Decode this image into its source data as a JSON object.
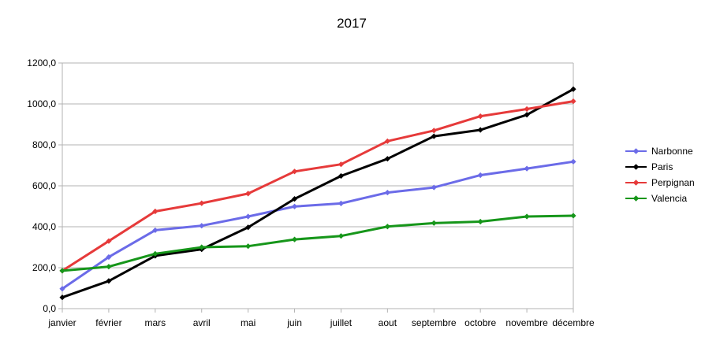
{
  "chart_data": {
    "type": "line",
    "title": "2017",
    "categories": [
      "janvier",
      "février",
      "mars",
      "avril",
      "mai",
      "juin",
      "juillet",
      "aout",
      "septembre",
      "octobre",
      "novembre",
      "décembre"
    ],
    "series": [
      {
        "name": "Narbonne",
        "color": "#6b6be8",
        "values": [
          97,
          252,
          383,
          405,
          450,
          499,
          514,
          567,
          592,
          652,
          684,
          718
        ]
      },
      {
        "name": "Paris",
        "color": "#000000",
        "values": [
          55,
          135,
          258,
          290,
          397,
          536,
          648,
          732,
          842,
          873,
          947,
          1072
        ]
      },
      {
        "name": "Perpignan",
        "color": "#e63a3a",
        "values": [
          185,
          330,
          475,
          515,
          562,
          670,
          705,
          818,
          870,
          940,
          975,
          1013
        ]
      },
      {
        "name": "Valencia",
        "color": "#16961a",
        "values": [
          185,
          205,
          268,
          300,
          305,
          338,
          355,
          401,
          418,
          425,
          450,
          454
        ]
      }
    ],
    "yticks": [
      "0,0",
      "200,0",
      "400,0",
      "600,0",
      "800,0",
      "1000,0",
      "1200,0"
    ],
    "ylim": [
      0,
      1200
    ],
    "ystep": 200,
    "grid": true,
    "legend_position": "right",
    "marker": "diamond"
  }
}
